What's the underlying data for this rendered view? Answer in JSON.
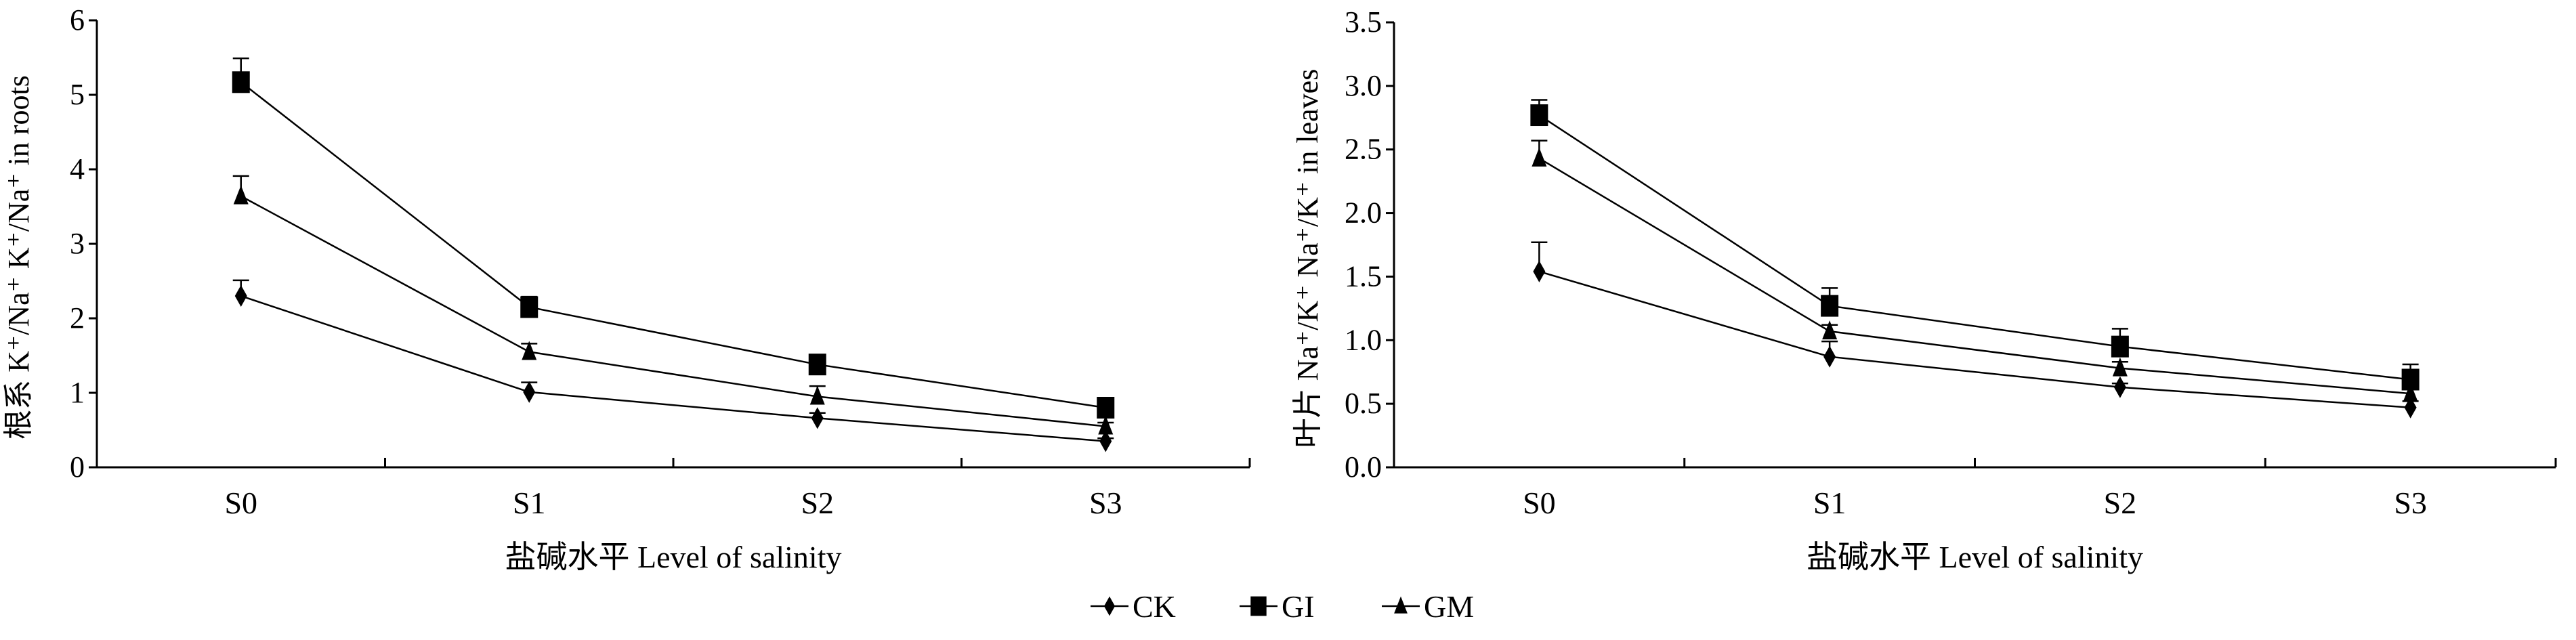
{
  "chart_data": [
    {
      "type": "line",
      "title": "",
      "xlabel": "盐碱水平 Level of salinity",
      "ylabel": "根系 K⁺/Na⁺ K⁺/Na⁺ in roots",
      "categories": [
        "S0",
        "S1",
        "S2",
        "S3"
      ],
      "ylim": [
        0,
        6
      ],
      "yticks": [
        "0",
        "1",
        "2",
        "3",
        "4",
        "5",
        "6"
      ],
      "ytick_values": [
        0,
        1,
        2,
        3,
        4,
        5,
        6
      ],
      "grid": false,
      "series": [
        {
          "name": "CK",
          "marker": "diamond",
          "values": [
            2.3,
            1.01,
            0.66,
            0.35
          ],
          "errors": [
            0.21,
            0.13,
            0.07,
            0.04
          ]
        },
        {
          "name": "GI",
          "marker": "square",
          "values": [
            5.17,
            2.15,
            1.38,
            0.8
          ],
          "errors": [
            0.32,
            0.14,
            0.08,
            0.06
          ]
        },
        {
          "name": "GM",
          "marker": "triangle",
          "values": [
            3.64,
            1.55,
            0.95,
            0.55
          ],
          "errors": [
            0.27,
            0.11,
            0.14,
            0.05
          ]
        }
      ]
    },
    {
      "type": "line",
      "title": "",
      "xlabel": "盐碱水平 Level of salinity",
      "ylabel": "叶片 Na⁺/K⁺ Na⁺/K⁺ in leaves",
      "categories": [
        "S0",
        "S1",
        "S2",
        "S3"
      ],
      "ylim": [
        0,
        3.5
      ],
      "yticks": [
        "0.0",
        "0.5",
        "1.0",
        "1.5",
        "2.0",
        "2.5",
        "3.0",
        "3.5"
      ],
      "ytick_values": [
        0,
        0.5,
        1,
        1.5,
        2,
        2.5,
        3,
        3.5
      ],
      "grid": false,
      "series": [
        {
          "name": "CK",
          "marker": "diamond",
          "values": [
            1.54,
            0.87,
            0.63,
            0.47
          ],
          "errors": [
            0.23,
            0.12,
            0.03,
            0.05
          ]
        },
        {
          "name": "GI",
          "marker": "square",
          "values": [
            2.77,
            1.27,
            0.95,
            0.69
          ],
          "errors": [
            0.12,
            0.14,
            0.14,
            0.12
          ]
        },
        {
          "name": "GM",
          "marker": "triangle",
          "values": [
            2.43,
            1.07,
            0.78,
            0.58
          ],
          "errors": [
            0.14,
            0.05,
            0.05,
            0.04
          ]
        }
      ]
    }
  ],
  "legend": {
    "placement": "bottom-center",
    "items": [
      {
        "label": "CK",
        "marker": "diamond"
      },
      {
        "label": "GI",
        "marker": "square"
      },
      {
        "label": "GM",
        "marker": "triangle"
      }
    ]
  },
  "colors": {
    "ink": "#000000",
    "background": "#ffffff"
  }
}
